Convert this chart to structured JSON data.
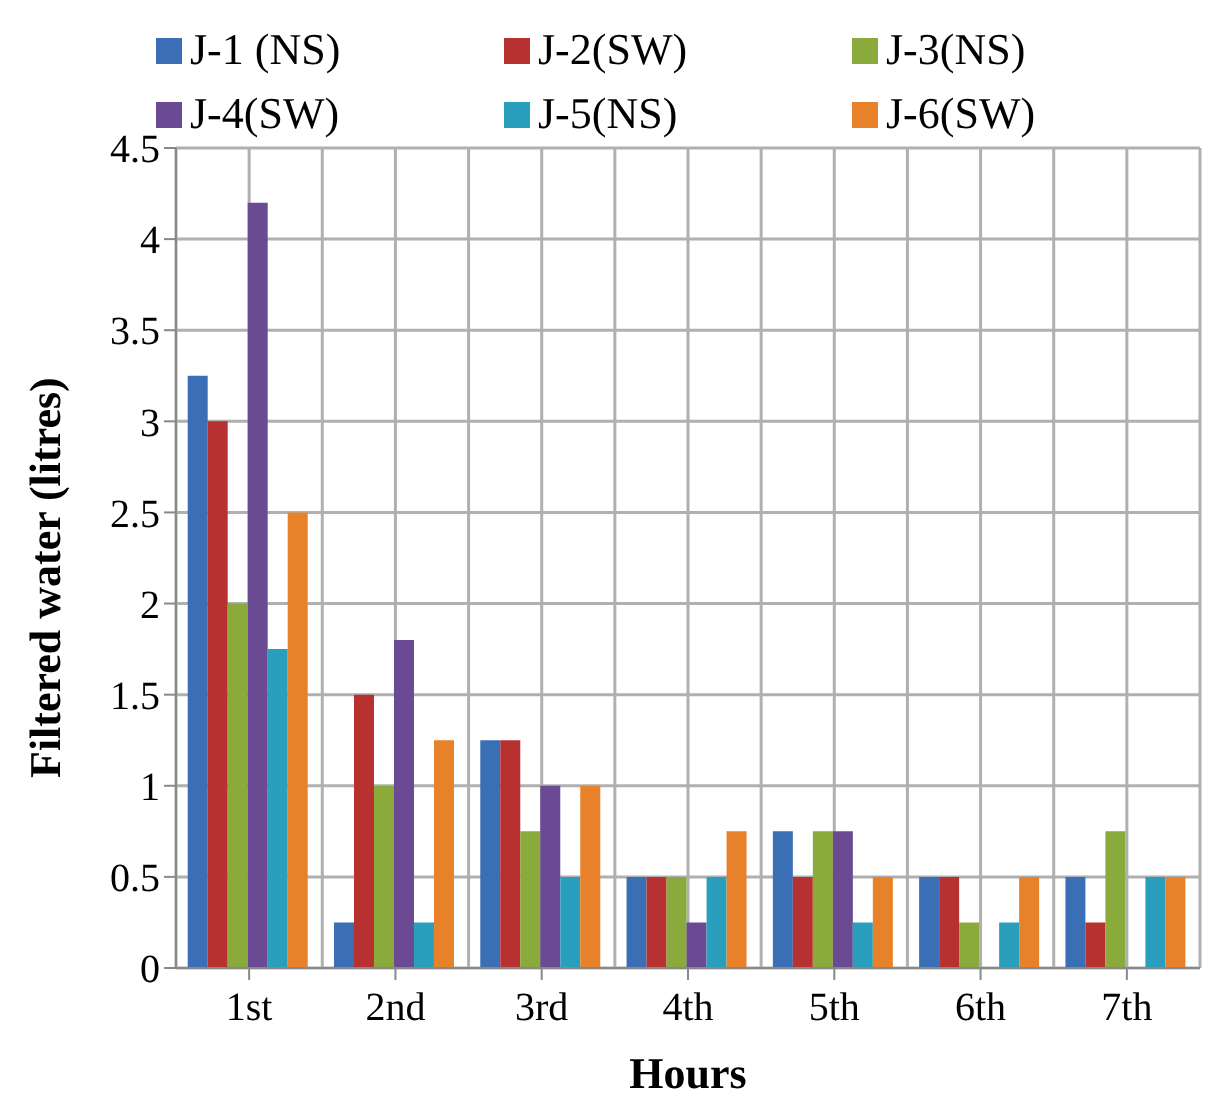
{
  "chart_data": {
    "type": "bar",
    "xlabel": "Hours",
    "ylabel": "Filtered water (litres)",
    "categories": [
      "1st",
      "2nd",
      "3rd",
      "4th",
      "5th",
      "6th",
      "7th"
    ],
    "series": [
      {
        "name": "J-1 (NS)",
        "color": "#3a6fb5",
        "values": [
          3.25,
          0.25,
          1.25,
          0.5,
          0.75,
          0.5,
          0.5
        ]
      },
      {
        "name": "J-2(SW)",
        "color": "#b83131",
        "values": [
          3,
          1.5,
          1.25,
          0.5,
          0.5,
          0.5,
          0.25
        ]
      },
      {
        "name": "J-3(NS)",
        "color": "#8aaa3c",
        "values": [
          2,
          1,
          0.75,
          0.5,
          0.75,
          0.25,
          0.75
        ]
      },
      {
        "name": "J-4(SW)",
        "color": "#6b4a94",
        "values": [
          4.2,
          1.8,
          1,
          0.25,
          0.75,
          0,
          0
        ]
      },
      {
        "name": "J-5(NS)",
        "color": "#2a9fbd",
        "values": [
          1.75,
          0.25,
          0.5,
          0.5,
          0.25,
          0.25,
          0.5
        ]
      },
      {
        "name": "J-6(SW)",
        "color": "#e8822a",
        "values": [
          2.5,
          1.25,
          1,
          0.75,
          0.5,
          0.5,
          0.5
        ]
      }
    ],
    "ylim": [
      0,
      4.5
    ],
    "yticks": [
      0,
      0.5,
      1,
      1.5,
      2,
      2.5,
      3,
      3.5,
      4,
      4.5
    ],
    "grid": true,
    "legend": "top"
  }
}
